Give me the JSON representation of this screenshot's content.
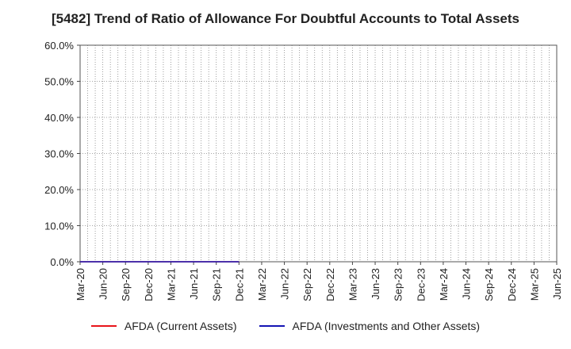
{
  "chart_data": {
    "type": "line",
    "title": "[5482]  Trend of Ratio of Allowance For Doubtful Accounts to Total Assets",
    "xlabel": "",
    "ylabel": "",
    "x_ticks": [
      "Mar-20",
      "Jun-20",
      "Sep-20",
      "Dec-20",
      "Mar-21",
      "Jun-21",
      "Sep-21",
      "Dec-21",
      "Mar-22",
      "Jun-22",
      "Sep-22",
      "Dec-22",
      "Mar-23",
      "Jun-23",
      "Sep-23",
      "Dec-23",
      "Mar-24",
      "Jun-24",
      "Sep-24",
      "Dec-24",
      "Mar-25",
      "Jun-25"
    ],
    "y_ticks": [
      "0.0%",
      "10.0%",
      "20.0%",
      "30.0%",
      "40.0%",
      "50.0%",
      "60.0%"
    ],
    "ylim": [
      0,
      60
    ],
    "grid": true,
    "grid_style": "dotted",
    "legend_position": "bottom",
    "series": [
      {
        "name": "AFDA (Current Assets)",
        "color": "#e8141a",
        "x": [
          "Mar-20",
          "Jun-20",
          "Sep-20",
          "Dec-20",
          "Mar-21",
          "Jun-21",
          "Sep-21",
          "Dec-21"
        ],
        "values": [
          0.0,
          0.0,
          0.0,
          0.0,
          0.0,
          0.0,
          0.0,
          0.0
        ]
      },
      {
        "name": "AFDA (Investments and Other Assets)",
        "color": "#1414b4",
        "x": [
          "Mar-20",
          "Jun-20",
          "Sep-20",
          "Dec-20",
          "Mar-21",
          "Jun-21",
          "Sep-21",
          "Dec-21"
        ],
        "values": [
          0.0,
          0.0,
          0.0,
          0.0,
          0.0,
          0.0,
          0.0,
          0.0
        ]
      }
    ]
  }
}
